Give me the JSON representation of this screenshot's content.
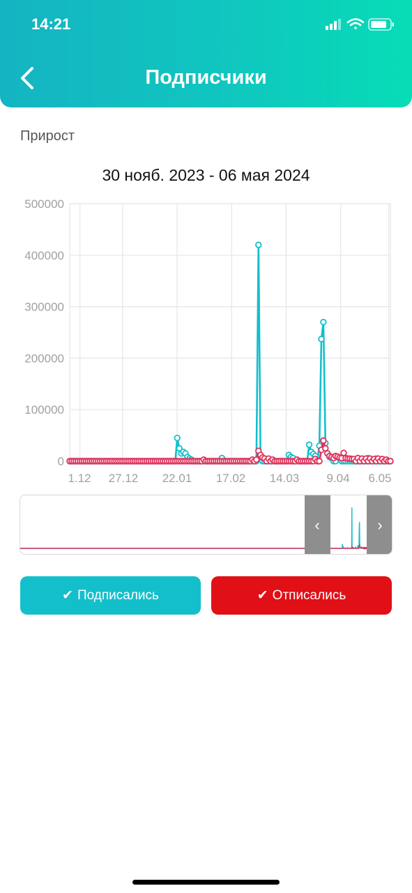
{
  "status_bar": {
    "time": "14:21"
  },
  "header": {
    "title": "Подписчики",
    "back_icon": "chevron-left-icon"
  },
  "section_label": "Прирост",
  "date_range": "30 нояб. 2023 - 06 мая 2024",
  "colors": {
    "subscribed": "#14bfcc",
    "unsubscribed": "#e0305a",
    "header_start": "#14b4c2",
    "header_end": "#06dcb6"
  },
  "chart_data": {
    "type": "line",
    "title": "",
    "xlabel": "",
    "ylabel": "",
    "ylim": [
      0,
      500000
    ],
    "yticks": [
      "0",
      "100000",
      "200000",
      "300000",
      "400000",
      "500000"
    ],
    "xticks": [
      "1.12",
      "27.12",
      "22.01",
      "17.02",
      "14.03",
      "9.04",
      "6.05"
    ],
    "x_start": "30.11.2023",
    "x_end": "06.05.2024",
    "points_per_series": 159,
    "grid": true,
    "series": [
      {
        "id": "subscribed",
        "name": "Подписались",
        "baseline": 0,
        "spikes": [
          [
            53,
            45000
          ],
          [
            54,
            25000
          ],
          [
            55,
            15000
          ],
          [
            56,
            18000
          ],
          [
            57,
            15000
          ],
          [
            58,
            8000
          ],
          [
            59,
            5000
          ],
          [
            60,
            3000
          ],
          [
            75,
            6000
          ],
          [
            93,
            420000
          ],
          [
            94,
            10000
          ],
          [
            108,
            12000
          ],
          [
            109,
            8000
          ],
          [
            110,
            6000
          ],
          [
            118,
            32000
          ],
          [
            119,
            18000
          ],
          [
            120,
            14000
          ],
          [
            121,
            10000
          ],
          [
            123,
            30000
          ],
          [
            124,
            237000
          ],
          [
            125,
            270000
          ],
          [
            126,
            35000
          ],
          [
            127,
            15000
          ],
          [
            128,
            8000
          ],
          [
            129,
            6000
          ],
          [
            132,
            8000
          ],
          [
            133,
            5000
          ],
          [
            147,
            6000
          ],
          [
            151,
            5000
          ]
        ]
      },
      {
        "id": "unsubscribed",
        "name": "Отписались",
        "baseline": 0,
        "spikes": [
          [
            66,
            3000
          ],
          [
            90,
            3000
          ],
          [
            92,
            3000
          ],
          [
            93,
            20000
          ],
          [
            94,
            12000
          ],
          [
            95,
            7000
          ],
          [
            96,
            5000
          ],
          [
            98,
            5000
          ],
          [
            100,
            3000
          ],
          [
            112,
            3000
          ],
          [
            121,
            4000
          ],
          [
            124,
            22000
          ],
          [
            125,
            40000
          ],
          [
            126,
            25000
          ],
          [
            127,
            15000
          ],
          [
            128,
            10000
          ],
          [
            129,
            8000
          ],
          [
            130,
            6000
          ],
          [
            131,
            10000
          ],
          [
            132,
            9000
          ],
          [
            133,
            7000
          ],
          [
            134,
            6000
          ],
          [
            135,
            16000
          ],
          [
            136,
            6000
          ],
          [
            137,
            5000
          ],
          [
            138,
            5000
          ],
          [
            139,
            4000
          ],
          [
            140,
            4000
          ],
          [
            142,
            6000
          ],
          [
            144,
            5000
          ],
          [
            146,
            5000
          ],
          [
            148,
            5000
          ],
          [
            150,
            4000
          ],
          [
            152,
            5000
          ],
          [
            154,
            4000
          ],
          [
            156,
            3000
          ]
        ]
      }
    ]
  },
  "navigator": {
    "prev_icon": "chevron-left-icon",
    "next_icon": "chevron-right-icon"
  },
  "buttons": {
    "subscribed": {
      "label": "Подписались",
      "check": "✔"
    },
    "unsubscribed": {
      "label": "Отписались",
      "check": "✔"
    }
  }
}
